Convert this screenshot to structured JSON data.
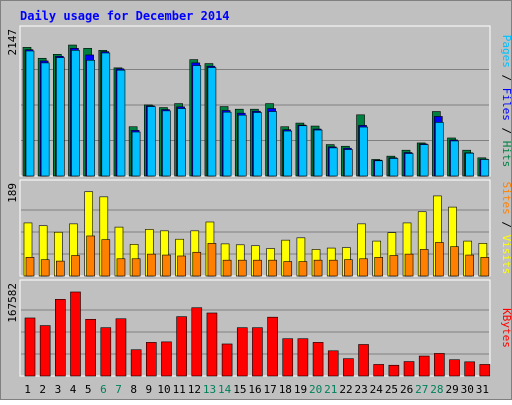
{
  "chart_data": {
    "type": "bar",
    "title": "Daily usage for December 2014",
    "categories": [
      "1",
      "2",
      "3",
      "4",
      "5",
      "6",
      "7",
      "8",
      "9",
      "10",
      "11",
      "12",
      "13",
      "14",
      "15",
      "16",
      "17",
      "18",
      "19",
      "20",
      "21",
      "22",
      "23",
      "24",
      "25",
      "26",
      "27",
      "28",
      "29",
      "30",
      "31"
    ],
    "weekend_days": [
      "6",
      "7",
      "13",
      "14",
      "20",
      "21",
      "27",
      "28"
    ],
    "panels": [
      {
        "id": "hits",
        "max_label": "2147",
        "ylim": [
          0,
          2147
        ],
        "series": [
          {
            "name": "Hits",
            "color": "#008040",
            "values": [
              1945,
              1780,
              1840,
              1980,
              1930,
              1900,
              1635,
              745,
              1075,
              1035,
              1095,
              1760,
              1700,
              1050,
              1010,
              1010,
              1095,
              745,
              800,
              755,
              475,
              450,
              925,
              250,
              300,
              390,
              500,
              975,
              575,
              390,
              275
            ]
          },
          {
            "name": "Files",
            "color": "#0000ff",
            "values": [
              1910,
              1740,
              1810,
              1930,
              1830,
              1880,
              1620,
              690,
              1060,
              1005,
              1045,
              1710,
              1660,
              990,
              950,
              980,
              1020,
              700,
              770,
              710,
              440,
              420,
              765,
              240,
              275,
              355,
              485,
              900,
              545,
              350,
              255
            ]
          },
          {
            "name": "Pages",
            "color": "#00c0ff",
            "values": [
              1890,
              1710,
              1790,
              1900,
              1750,
              1860,
              1600,
              665,
              1050,
              985,
              1020,
              1670,
              1640,
              965,
              920,
              960,
              975,
              680,
              760,
              695,
              425,
              400,
              740,
              230,
              265,
              340,
              475,
              810,
              530,
              345,
              250
            ]
          }
        ]
      },
      {
        "id": "visits",
        "max_label": "189",
        "ylim": [
          0,
          189
        ],
        "series": [
          {
            "name": "Visits",
            "color": "#ffff00",
            "values": [
              114,
              108,
              94,
              112,
              181,
              170,
              105,
              68,
              100,
              97,
              79,
              97,
              116,
              69,
              67,
              65,
              59,
              77,
              82,
              57,
              60,
              61,
              112,
              75,
              93,
              114,
              138,
              172,
              148,
              75,
              70
            ]
          },
          {
            "name": "Sites",
            "color": "#ff8000",
            "values": [
              40,
              35,
              32,
              44,
              86,
              78,
              37,
              37,
              47,
              45,
              43,
              51,
              70,
              34,
              34,
              34,
              34,
              31,
              31,
              34,
              34,
              35,
              37,
              40,
              44,
              47,
              57,
              72,
              63,
              45,
              40
            ]
          }
        ]
      },
      {
        "id": "kbytes",
        "max_label": "167582",
        "ylim": [
          0,
          167582
        ],
        "series": [
          {
            "name": "KBytes",
            "color": "#ff0000",
            "values": [
              110500,
              96000,
              146000,
              160000,
              108000,
              92000,
              109000,
              50000,
              64000,
              65000,
              113000,
              130000,
              120000,
              61000,
              92000,
              92000,
              112000,
              71000,
              71000,
              64000,
              48000,
              33000,
              60000,
              22000,
              20500,
              27500,
              38000,
              43000,
              31000,
              27000,
              22000
            ]
          }
        ]
      }
    ],
    "right_labels": {
      "hits": [
        {
          "text": "Pages",
          "color": "#00c0ff"
        },
        {
          "text": " / ",
          "color": "#000000"
        },
        {
          "text": "Files",
          "color": "#0000ff"
        },
        {
          "text": " / ",
          "color": "#000000"
        },
        {
          "text": "Hits",
          "color": "#008040"
        }
      ],
      "visits": [
        {
          "text": "Sites",
          "color": "#ff8000"
        },
        {
          "text": " / ",
          "color": "#000000"
        },
        {
          "text": "Visits",
          "color": "#ffff00"
        }
      ],
      "kbytes": [
        {
          "text": "KBytes",
          "color": "#ff0000"
        }
      ]
    },
    "colors": {
      "background": "#c0c0c0",
      "title": "#0000ff",
      "weekend_label": "#00805a",
      "weekday_label": "#000000",
      "grid": "#808080"
    }
  }
}
